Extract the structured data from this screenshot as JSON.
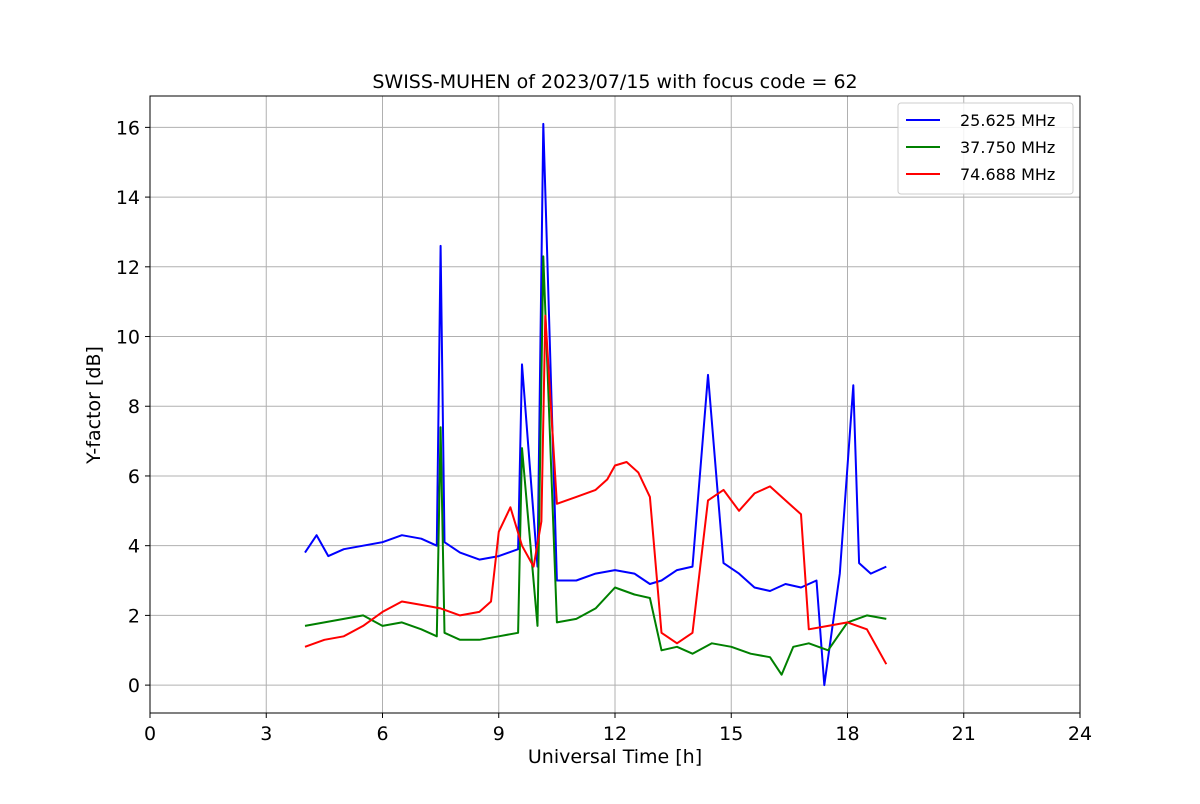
{
  "chart_data": {
    "type": "line",
    "title": "SWISS-MUHEN of 2023/07/15 with focus code = 62",
    "xlabel": "Universal Time [h]",
    "ylabel": "Y-factor [dB]",
    "xlim": [
      0,
      24
    ],
    "ylim": [
      -0.8,
      16.9
    ],
    "xticks": [
      0,
      3,
      6,
      9,
      12,
      15,
      18,
      21,
      24
    ],
    "yticks": [
      0,
      2,
      4,
      6,
      8,
      10,
      12,
      14,
      16
    ],
    "grid": true,
    "legend_position": "top-right",
    "series": [
      {
        "name": "25.625 MHz",
        "color": "#0000ff",
        "x": [
          4.0,
          4.3,
          4.6,
          5.0,
          5.5,
          6.0,
          6.5,
          7.0,
          7.4,
          7.5,
          7.6,
          8.0,
          8.5,
          9.0,
          9.5,
          9.6,
          10.0,
          10.15,
          10.5,
          11.0,
          11.5,
          12.0,
          12.5,
          12.9,
          13.2,
          13.6,
          14.0,
          14.4,
          14.8,
          15.2,
          15.6,
          16.0,
          16.4,
          16.8,
          17.2,
          17.4,
          17.8,
          18.15,
          18.3,
          18.6,
          19.0
        ],
        "y": [
          3.8,
          4.3,
          3.7,
          3.9,
          4.0,
          4.1,
          4.3,
          4.2,
          4.0,
          12.6,
          4.1,
          3.8,
          3.6,
          3.7,
          3.9,
          9.2,
          3.4,
          16.1,
          3.0,
          3.0,
          3.2,
          3.3,
          3.2,
          2.9,
          3.0,
          3.3,
          3.4,
          8.9,
          3.5,
          3.2,
          2.8,
          2.7,
          2.9,
          2.8,
          3.0,
          0.0,
          3.2,
          8.6,
          3.5,
          3.2,
          3.4
        ]
      },
      {
        "name": "37.750 MHz",
        "color": "#008000",
        "x": [
          4.0,
          4.5,
          5.0,
          5.5,
          6.0,
          6.5,
          7.0,
          7.4,
          7.5,
          7.6,
          8.0,
          8.5,
          9.0,
          9.5,
          9.6,
          10.0,
          10.15,
          10.5,
          11.0,
          11.5,
          12.0,
          12.5,
          12.9,
          13.2,
          13.6,
          14.0,
          14.5,
          15.0,
          15.5,
          16.0,
          16.3,
          16.6,
          17.0,
          17.5,
          18.0,
          18.5,
          19.0
        ],
        "y": [
          1.7,
          1.8,
          1.9,
          2.0,
          1.7,
          1.8,
          1.6,
          1.4,
          7.4,
          1.5,
          1.3,
          1.3,
          1.4,
          1.5,
          6.8,
          1.7,
          12.3,
          1.8,
          1.9,
          2.2,
          2.8,
          2.6,
          2.5,
          1.0,
          1.1,
          0.9,
          1.2,
          1.1,
          0.9,
          0.8,
          0.3,
          1.1,
          1.2,
          1.0,
          1.8,
          2.0,
          1.9
        ]
      },
      {
        "name": "74.688 MHz",
        "color": "#ff0000",
        "x": [
          4.0,
          4.5,
          5.0,
          5.5,
          6.0,
          6.5,
          7.0,
          7.5,
          8.0,
          8.5,
          8.8,
          9.0,
          9.3,
          9.6,
          9.9,
          10.1,
          10.2,
          10.5,
          11.0,
          11.5,
          11.8,
          12.0,
          12.3,
          12.6,
          12.9,
          13.2,
          13.6,
          14.0,
          14.4,
          14.8,
          15.2,
          15.6,
          16.0,
          16.4,
          16.8,
          17.0,
          17.5,
          18.0,
          18.5,
          19.0
        ],
        "y": [
          1.1,
          1.3,
          1.4,
          1.7,
          2.1,
          2.4,
          2.3,
          2.2,
          2.0,
          2.1,
          2.4,
          4.4,
          5.1,
          4.0,
          3.4,
          4.7,
          10.6,
          5.2,
          5.4,
          5.6,
          5.9,
          6.3,
          6.4,
          6.1,
          5.4,
          1.5,
          1.2,
          1.5,
          5.3,
          5.6,
          5.0,
          5.5,
          5.7,
          5.3,
          4.9,
          1.6,
          1.7,
          1.8,
          1.6,
          0.6
        ]
      }
    ]
  }
}
